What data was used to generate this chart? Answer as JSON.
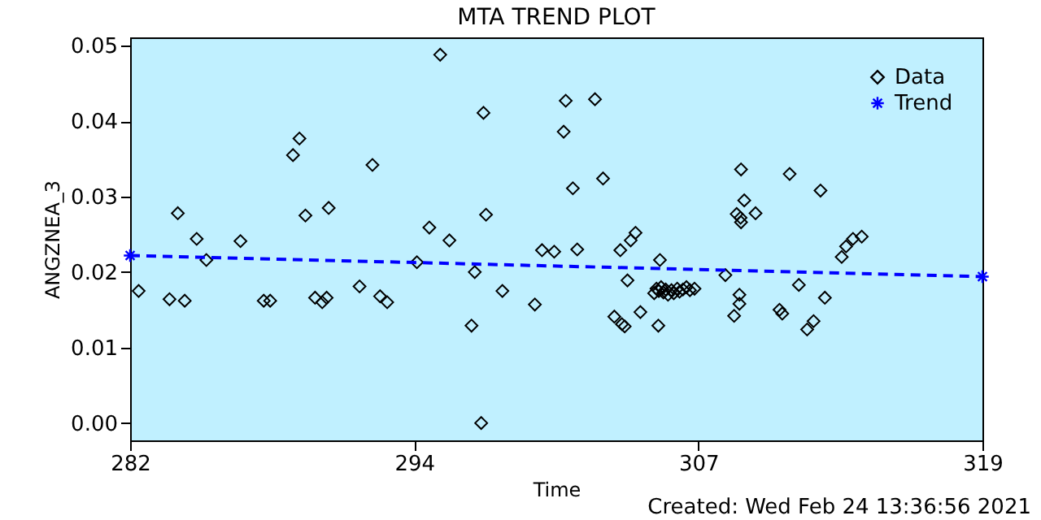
{
  "chart_data": {
    "type": "scatter",
    "title": "MTA TREND PLOT",
    "xlabel": "Time",
    "ylabel": "ANGZNEA_3",
    "annotations": [
      "Created: Wed Feb 24 13:36:56 2021"
    ],
    "xlim": [
      282,
      319
    ],
    "xticks": [
      282,
      {
        "value": 294.33,
        "label": "294"
      },
      {
        "value": 306.67,
        "label": "307"
      },
      319
    ],
    "ylim": [
      -0.0023,
      0.0511
    ],
    "yticks": [
      {
        "value": 0,
        "label": "0.00"
      },
      0.01,
      0.02,
      0.03,
      0.04,
      0.05
    ],
    "grid": false,
    "legend": "top right",
    "series": [
      {
        "name": "Data",
        "color": "#000000",
        "marker": "diamond",
        "x": [
          282.37,
          283.71,
          284.07,
          284.37,
          284.89,
          285.31,
          286.79,
          287.8,
          288.08,
          289.07,
          289.35,
          289.61,
          290.03,
          290.34,
          290.53,
          290.62,
          291.96,
          292.52,
          292.85,
          293.16,
          294.45,
          294.99,
          295.46,
          295.86,
          296.82,
          296.96,
          297.24,
          297.34,
          297.45,
          298.16,
          299.57,
          299.88,
          300.41,
          300.82,
          300.91,
          301.22,
          301.41,
          302.18,
          302.53,
          303.02,
          303.28,
          303.35,
          303.47,
          303.59,
          303.73,
          303.94,
          304.15,
          304.93,
          305.0,
          304.75,
          304.85,
          304.95,
          305.05,
          305.15,
          305.25,
          305.35,
          305.5,
          305.6,
          305.75,
          305.85,
          306.0,
          306.15,
          306.3,
          306.5,
          307.84,
          308.22,
          308.45,
          308.45,
          308.52,
          308.33,
          308.5,
          308.52,
          308.66,
          309.15,
          310.19,
          310.31,
          310.63,
          311.03,
          311.39,
          311.67,
          311.97,
          312.16,
          312.89,
          313.08,
          313.38,
          313.76
        ],
        "values": [
          0.0175,
          0.0164,
          0.0278,
          0.0162,
          0.0244,
          0.0216,
          0.0241,
          0.0162,
          0.0162,
          0.0355,
          0.0377,
          0.0275,
          0.0166,
          0.016,
          0.0166,
          0.0285,
          0.0181,
          0.0342,
          0.0168,
          0.016,
          0.0213,
          0.0259,
          0.0488,
          0.0242,
          0.0129,
          0.02,
          0.0,
          0.0411,
          0.0276,
          0.0175,
          0.0157,
          0.0229,
          0.0227,
          0.0386,
          0.0427,
          0.0311,
          0.023,
          0.0429,
          0.0324,
          0.0141,
          0.0229,
          0.0131,
          0.0128,
          0.0189,
          0.0242,
          0.0252,
          0.0147,
          0.0129,
          0.0216,
          0.0172,
          0.0178,
          0.0175,
          0.018,
          0.0173,
          0.0177,
          0.017,
          0.0176,
          0.0172,
          0.0178,
          0.0174,
          0.0177,
          0.018,
          0.0176,
          0.0178,
          0.0196,
          0.0142,
          0.017,
          0.0158,
          0.0336,
          0.0277,
          0.0272,
          0.0266,
          0.0295,
          0.0278,
          0.015,
          0.0145,
          0.033,
          0.0183,
          0.0124,
          0.0135,
          0.0308,
          0.0166,
          0.022,
          0.0234,
          0.0244,
          0.0247
        ]
      },
      {
        "name": "Trend",
        "type": "line",
        "color": "#0000ff",
        "marker": "cross",
        "line_style": "dashed",
        "x": [
          282,
          319
        ],
        "values": [
          0.0222,
          0.0194
        ]
      }
    ]
  }
}
